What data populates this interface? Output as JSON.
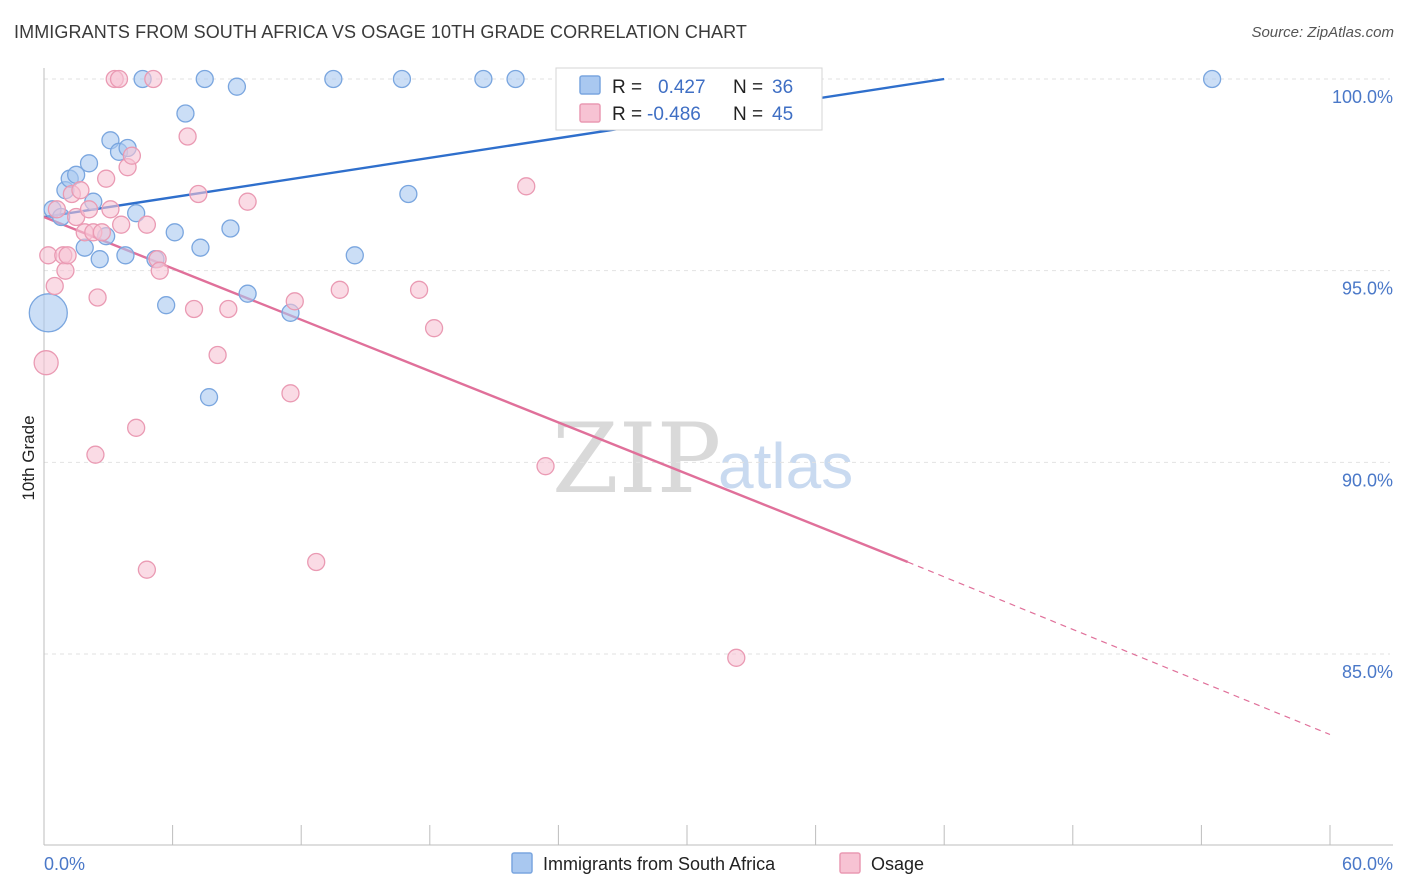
{
  "header": {
    "title": "IMMIGRANTS FROM SOUTH AFRICA VS OSAGE 10TH GRADE CORRELATION CHART",
    "source": "Source: ZipAtlas.com"
  },
  "watermark": {
    "zip": "ZIP",
    "atlas": "atlas"
  },
  "colors": {
    "blue_fill": "#a9c8f0",
    "blue_stroke": "#7aa6df",
    "blue_line": "#2f6fcc",
    "pink_fill": "#f7c3d3",
    "pink_stroke": "#ea9ab3",
    "pink_line": "#e0709a",
    "tick_text": "#4a78c8",
    "grid": "#e2e2e2"
  },
  "stats_box": {
    "rows": [
      {
        "r_label": "R =",
        "r_value": "0.427",
        "n_label": "N =",
        "n_value": "36"
      },
      {
        "r_label": "R =",
        "r_value": "-0.486",
        "n_label": "N =",
        "n_value": "45"
      }
    ]
  },
  "chart_data": {
    "type": "scatter",
    "title": "IMMIGRANTS FROM SOUTH AFRICA VS OSAGE 10TH GRADE CORRELATION CHART",
    "xlabel": "",
    "ylabel": "10th Grade",
    "xlim": [
      0,
      60
    ],
    "ylim": [
      80.5,
      101.0
    ],
    "x_ticks": [
      "0.0%",
      "60.0%"
    ],
    "y_ticks": [
      {
        "value": 100,
        "label": "100.0%"
      },
      {
        "value": 95,
        "label": "95.0%"
      },
      {
        "value": 90,
        "label": "90.0%"
      },
      {
        "value": 85,
        "label": "85.0%"
      }
    ],
    "grid": true,
    "legend_position": "bottom-center",
    "series": [
      {
        "name": "Immigrants from South Africa",
        "color": "#a9c8f0",
        "points": [
          [
            0.2,
            93.9
          ],
          [
            0.4,
            96.6
          ],
          [
            0.8,
            96.4
          ],
          [
            1.0,
            97.1
          ],
          [
            1.2,
            97.4
          ],
          [
            1.5,
            97.5
          ],
          [
            1.9,
            95.6
          ],
          [
            2.1,
            97.8
          ],
          [
            2.3,
            96.8
          ],
          [
            2.6,
            95.3
          ],
          [
            2.9,
            95.9
          ],
          [
            3.1,
            98.4
          ],
          [
            3.5,
            98.1
          ],
          [
            3.8,
            95.4
          ],
          [
            3.9,
            98.2
          ],
          [
            4.3,
            96.5
          ],
          [
            4.6,
            100.0
          ],
          [
            5.2,
            95.3
          ],
          [
            5.7,
            94.1
          ],
          [
            6.1,
            96.0
          ],
          [
            6.6,
            99.1
          ],
          [
            7.3,
            95.6
          ],
          [
            7.5,
            100.0
          ],
          [
            7.7,
            91.7
          ],
          [
            8.7,
            96.1
          ],
          [
            9.0,
            99.8
          ],
          [
            9.5,
            94.4
          ],
          [
            11.5,
            93.9
          ],
          [
            13.5,
            100.0
          ],
          [
            14.5,
            95.4
          ],
          [
            16.7,
            100.0
          ],
          [
            17.0,
            97.0
          ],
          [
            20.5,
            100.0
          ],
          [
            22.0,
            100.0
          ],
          [
            33.5,
            100.0
          ],
          [
            54.5,
            100.0
          ]
        ],
        "trend": {
          "x0": 0.0,
          "y0": 96.4,
          "x1": 42.0,
          "y1": 100.0
        }
      },
      {
        "name": "Osage",
        "color": "#f7c3d3",
        "points": [
          [
            0.1,
            92.6
          ],
          [
            0.2,
            95.4
          ],
          [
            0.5,
            94.6
          ],
          [
            0.6,
            96.6
          ],
          [
            0.9,
            95.4
          ],
          [
            1.0,
            95.0
          ],
          [
            1.1,
            95.4
          ],
          [
            1.3,
            97.0
          ],
          [
            1.5,
            96.4
          ],
          [
            1.7,
            97.1
          ],
          [
            1.9,
            96.0
          ],
          [
            2.1,
            96.6
          ],
          [
            2.3,
            96.0
          ],
          [
            2.5,
            94.3
          ],
          [
            2.4,
            90.2
          ],
          [
            2.7,
            96.0
          ],
          [
            2.9,
            97.4
          ],
          [
            3.1,
            96.6
          ],
          [
            3.3,
            100.0
          ],
          [
            3.5,
            100.0
          ],
          [
            3.6,
            96.2
          ],
          [
            3.9,
            97.7
          ],
          [
            4.1,
            98.0
          ],
          [
            4.3,
            90.9
          ],
          [
            4.8,
            96.2
          ],
          [
            4.8,
            87.2
          ],
          [
            5.1,
            100.0
          ],
          [
            5.3,
            95.3
          ],
          [
            5.4,
            95.0
          ],
          [
            6.7,
            98.5
          ],
          [
            7.0,
            94.0
          ],
          [
            7.2,
            97.0
          ],
          [
            8.1,
            92.8
          ],
          [
            8.6,
            94.0
          ],
          [
            9.5,
            96.8
          ],
          [
            11.5,
            91.8
          ],
          [
            11.7,
            94.2
          ],
          [
            12.7,
            87.4
          ],
          [
            13.8,
            94.5
          ],
          [
            17.5,
            94.5
          ],
          [
            18.2,
            93.5
          ],
          [
            22.5,
            97.2
          ],
          [
            23.4,
            89.9
          ],
          [
            32.3,
            84.9
          ],
          [
            33.0,
            100.0
          ]
        ],
        "trend": {
          "x0": 0.0,
          "y0": 96.4,
          "x1": 40.3,
          "y1": 87.4
        },
        "trend_dashed": {
          "x0": 40.3,
          "y0": 87.4,
          "x1": 60.0,
          "y1": 82.9
        }
      }
    ]
  }
}
